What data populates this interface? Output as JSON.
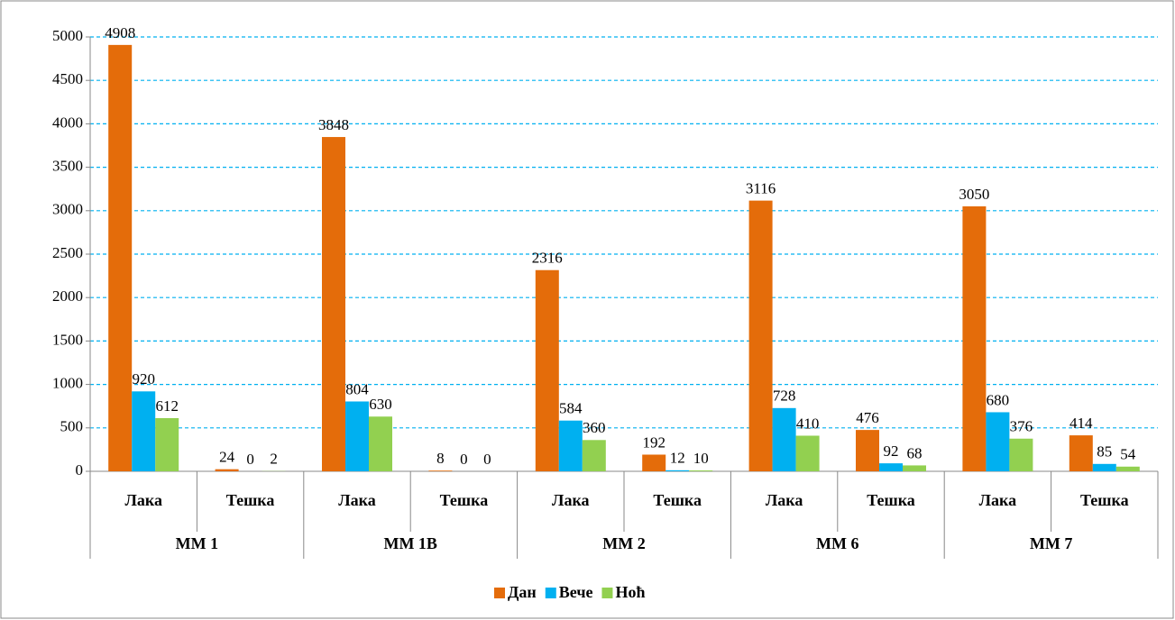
{
  "chart_data": {
    "type": "bar",
    "groups": [
      {
        "name": "ММ 1",
        "categories": [
          "Лака",
          "Тешка"
        ]
      },
      {
        "name": "ММ 1В",
        "categories": [
          "Лака",
          "Тешка"
        ]
      },
      {
        "name": "ММ 2",
        "categories": [
          "Лака",
          "Тешка"
        ]
      },
      {
        "name": "ММ 6",
        "categories": [
          "Лака",
          "Тешка"
        ]
      },
      {
        "name": "ММ 7",
        "categories": [
          "Лака",
          "Тешка"
        ]
      }
    ],
    "series": [
      {
        "name": "Дан",
        "color": "#e46c0a",
        "values": [
          4908,
          24,
          3848,
          8,
          2316,
          192,
          3116,
          476,
          3050,
          414
        ]
      },
      {
        "name": "Вече",
        "color": "#00b0f0",
        "values": [
          920,
          0,
          804,
          0,
          584,
          12,
          728,
          92,
          680,
          85
        ]
      },
      {
        "name": "Ноћ",
        "color": "#92d050",
        "values": [
          612,
          2,
          630,
          0,
          360,
          10,
          410,
          68,
          376,
          54
        ]
      }
    ],
    "ylim": [
      0,
      5000
    ],
    "yticks": [
      0,
      500,
      1000,
      1500,
      2000,
      2500,
      3000,
      3500,
      4000,
      4500,
      5000
    ],
    "grid": true,
    "legend": "bottom"
  }
}
